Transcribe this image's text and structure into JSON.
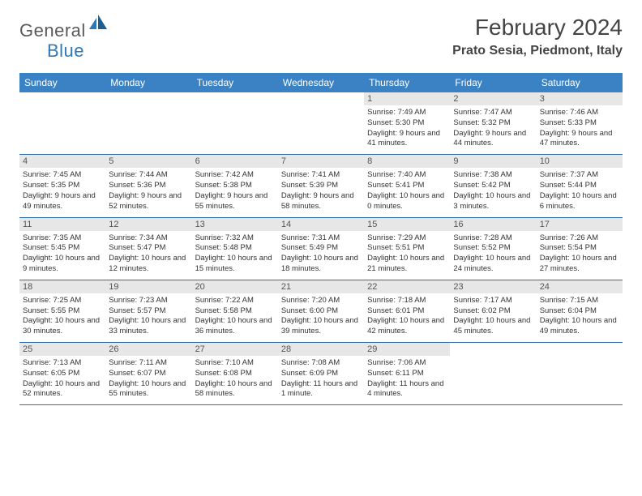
{
  "brand": {
    "name_part1": "General",
    "name_part2": "Blue",
    "color_general": "#5a5a5a",
    "color_blue": "#2e79b8"
  },
  "title": "February 2024",
  "location": "Prato Sesia, Piedmont, Italy",
  "theme": {
    "header_bg": "#3a82c4",
    "header_text": "#ffffff",
    "daynum_bg": "#e7e7e7",
    "border_color": "#2f6fa8",
    "body_text": "#333333",
    "title_fontsize": 28,
    "location_fontsize": 16,
    "weekday_fontsize": 12,
    "daynum_fontsize": 11,
    "info_fontsize": 9.5
  },
  "weekdays": [
    "Sunday",
    "Monday",
    "Tuesday",
    "Wednesday",
    "Thursday",
    "Friday",
    "Saturday"
  ],
  "weeks": [
    [
      {
        "n": "",
        "sunrise": "",
        "sunset": "",
        "daylight": "",
        "empty": true
      },
      {
        "n": "",
        "sunrise": "",
        "sunset": "",
        "daylight": "",
        "empty": true
      },
      {
        "n": "",
        "sunrise": "",
        "sunset": "",
        "daylight": "",
        "empty": true
      },
      {
        "n": "",
        "sunrise": "",
        "sunset": "",
        "daylight": "",
        "empty": true
      },
      {
        "n": "1",
        "sunrise": "Sunrise: 7:49 AM",
        "sunset": "Sunset: 5:30 PM",
        "daylight": "Daylight: 9 hours and 41 minutes."
      },
      {
        "n": "2",
        "sunrise": "Sunrise: 7:47 AM",
        "sunset": "Sunset: 5:32 PM",
        "daylight": "Daylight: 9 hours and 44 minutes."
      },
      {
        "n": "3",
        "sunrise": "Sunrise: 7:46 AM",
        "sunset": "Sunset: 5:33 PM",
        "daylight": "Daylight: 9 hours and 47 minutes."
      }
    ],
    [
      {
        "n": "4",
        "sunrise": "Sunrise: 7:45 AM",
        "sunset": "Sunset: 5:35 PM",
        "daylight": "Daylight: 9 hours and 49 minutes."
      },
      {
        "n": "5",
        "sunrise": "Sunrise: 7:44 AM",
        "sunset": "Sunset: 5:36 PM",
        "daylight": "Daylight: 9 hours and 52 minutes."
      },
      {
        "n": "6",
        "sunrise": "Sunrise: 7:42 AM",
        "sunset": "Sunset: 5:38 PM",
        "daylight": "Daylight: 9 hours and 55 minutes."
      },
      {
        "n": "7",
        "sunrise": "Sunrise: 7:41 AM",
        "sunset": "Sunset: 5:39 PM",
        "daylight": "Daylight: 9 hours and 58 minutes."
      },
      {
        "n": "8",
        "sunrise": "Sunrise: 7:40 AM",
        "sunset": "Sunset: 5:41 PM",
        "daylight": "Daylight: 10 hours and 0 minutes."
      },
      {
        "n": "9",
        "sunrise": "Sunrise: 7:38 AM",
        "sunset": "Sunset: 5:42 PM",
        "daylight": "Daylight: 10 hours and 3 minutes."
      },
      {
        "n": "10",
        "sunrise": "Sunrise: 7:37 AM",
        "sunset": "Sunset: 5:44 PM",
        "daylight": "Daylight: 10 hours and 6 minutes."
      }
    ],
    [
      {
        "n": "11",
        "sunrise": "Sunrise: 7:35 AM",
        "sunset": "Sunset: 5:45 PM",
        "daylight": "Daylight: 10 hours and 9 minutes."
      },
      {
        "n": "12",
        "sunrise": "Sunrise: 7:34 AM",
        "sunset": "Sunset: 5:47 PM",
        "daylight": "Daylight: 10 hours and 12 minutes."
      },
      {
        "n": "13",
        "sunrise": "Sunrise: 7:32 AM",
        "sunset": "Sunset: 5:48 PM",
        "daylight": "Daylight: 10 hours and 15 minutes."
      },
      {
        "n": "14",
        "sunrise": "Sunrise: 7:31 AM",
        "sunset": "Sunset: 5:49 PM",
        "daylight": "Daylight: 10 hours and 18 minutes."
      },
      {
        "n": "15",
        "sunrise": "Sunrise: 7:29 AM",
        "sunset": "Sunset: 5:51 PM",
        "daylight": "Daylight: 10 hours and 21 minutes."
      },
      {
        "n": "16",
        "sunrise": "Sunrise: 7:28 AM",
        "sunset": "Sunset: 5:52 PM",
        "daylight": "Daylight: 10 hours and 24 minutes."
      },
      {
        "n": "17",
        "sunrise": "Sunrise: 7:26 AM",
        "sunset": "Sunset: 5:54 PM",
        "daylight": "Daylight: 10 hours and 27 minutes."
      }
    ],
    [
      {
        "n": "18",
        "sunrise": "Sunrise: 7:25 AM",
        "sunset": "Sunset: 5:55 PM",
        "daylight": "Daylight: 10 hours and 30 minutes."
      },
      {
        "n": "19",
        "sunrise": "Sunrise: 7:23 AM",
        "sunset": "Sunset: 5:57 PM",
        "daylight": "Daylight: 10 hours and 33 minutes."
      },
      {
        "n": "20",
        "sunrise": "Sunrise: 7:22 AM",
        "sunset": "Sunset: 5:58 PM",
        "daylight": "Daylight: 10 hours and 36 minutes."
      },
      {
        "n": "21",
        "sunrise": "Sunrise: 7:20 AM",
        "sunset": "Sunset: 6:00 PM",
        "daylight": "Daylight: 10 hours and 39 minutes."
      },
      {
        "n": "22",
        "sunrise": "Sunrise: 7:18 AM",
        "sunset": "Sunset: 6:01 PM",
        "daylight": "Daylight: 10 hours and 42 minutes."
      },
      {
        "n": "23",
        "sunrise": "Sunrise: 7:17 AM",
        "sunset": "Sunset: 6:02 PM",
        "daylight": "Daylight: 10 hours and 45 minutes."
      },
      {
        "n": "24",
        "sunrise": "Sunrise: 7:15 AM",
        "sunset": "Sunset: 6:04 PM",
        "daylight": "Daylight: 10 hours and 49 minutes."
      }
    ],
    [
      {
        "n": "25",
        "sunrise": "Sunrise: 7:13 AM",
        "sunset": "Sunset: 6:05 PM",
        "daylight": "Daylight: 10 hours and 52 minutes."
      },
      {
        "n": "26",
        "sunrise": "Sunrise: 7:11 AM",
        "sunset": "Sunset: 6:07 PM",
        "daylight": "Daylight: 10 hours and 55 minutes."
      },
      {
        "n": "27",
        "sunrise": "Sunrise: 7:10 AM",
        "sunset": "Sunset: 6:08 PM",
        "daylight": "Daylight: 10 hours and 58 minutes."
      },
      {
        "n": "28",
        "sunrise": "Sunrise: 7:08 AM",
        "sunset": "Sunset: 6:09 PM",
        "daylight": "Daylight: 11 hours and 1 minute."
      },
      {
        "n": "29",
        "sunrise": "Sunrise: 7:06 AM",
        "sunset": "Sunset: 6:11 PM",
        "daylight": "Daylight: 11 hours and 4 minutes."
      },
      {
        "n": "",
        "sunrise": "",
        "sunset": "",
        "daylight": "",
        "empty": true
      },
      {
        "n": "",
        "sunrise": "",
        "sunset": "",
        "daylight": "",
        "empty": true
      }
    ]
  ]
}
